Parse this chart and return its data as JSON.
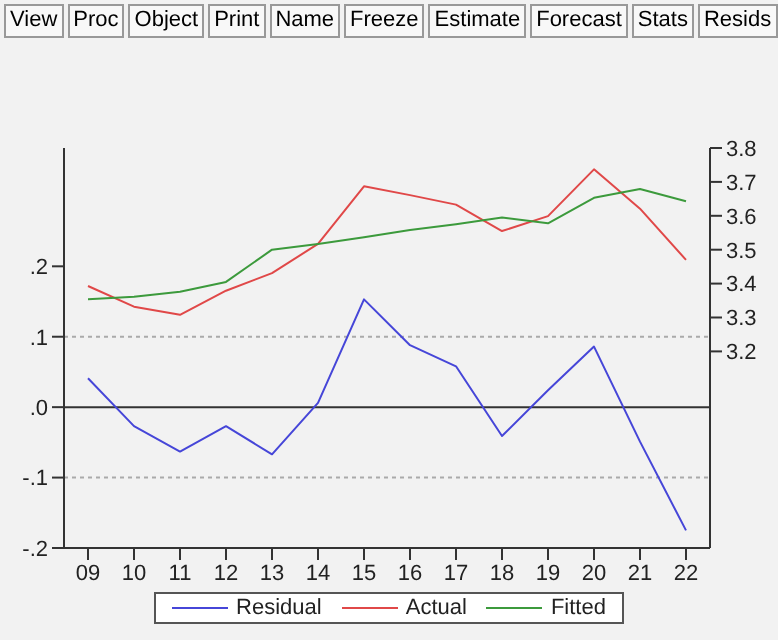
{
  "chart_data": {
    "type": "line",
    "categories": [
      "09",
      "10",
      "11",
      "12",
      "13",
      "14",
      "15",
      "16",
      "17",
      "18",
      "19",
      "20",
      "21",
      "22"
    ],
    "series": [
      {
        "name": "Residual",
        "color": "#4646d8",
        "values": [
          0.041,
          -0.027,
          -0.063,
          -0.027,
          -0.067,
          0.006,
          0.153,
          0.088,
          0.058,
          -0.041,
          0.024,
          0.086,
          -0.049,
          -0.175
        ]
      },
      {
        "name": "Actual",
        "color": "#e04848",
        "axis": "y2",
        "values": [
          3.393,
          3.332,
          3.308,
          3.379,
          3.431,
          3.517,
          3.687,
          3.661,
          3.633,
          3.555,
          3.599,
          3.737,
          3.621,
          3.47
        ]
      },
      {
        "name": "Fitted",
        "color": "#3c9a3c",
        "axis": "y2",
        "values": [
          3.354,
          3.361,
          3.376,
          3.405,
          3.5,
          3.517,
          3.537,
          3.558,
          3.575,
          3.595,
          3.578,
          3.653,
          3.679,
          3.643
        ]
      }
    ],
    "ylim": [
      -0.2,
      0.368
    ],
    "yticks": [
      {
        "value": -0.2,
        "label": "-.2"
      },
      {
        "value": -0.1,
        "label": "-.1"
      },
      {
        "value": 0,
        "label": ".0"
      },
      {
        "value": 0.1,
        "label": ".1"
      },
      {
        "value": 0.2,
        "label": ".2"
      }
    ],
    "y2lim": [
      2.62,
      3.8
    ],
    "y2ticks": [
      3.2,
      3.3,
      3.4,
      3.5,
      3.6,
      3.7,
      3.8
    ],
    "ref_lines": [
      {
        "axis": "y",
        "value": 0,
        "color": "#333333",
        "line_style": "solid"
      },
      {
        "axis": "y",
        "value": 0.1,
        "color": "#aaaaaa",
        "line_style": "dotted"
      },
      {
        "axis": "y",
        "value": -0.1,
        "color": "#aaaaaa",
        "line_style": "dotted"
      }
    ],
    "annotations": [
      "View",
      "Proc",
      "Object",
      "Print",
      "Name",
      "Freeze",
      "Estimate",
      "Forecast",
      "Stats",
      "Resids"
    ],
    "legend": "bottom",
    "marker": "none",
    "line_style": "solid",
    "grid": false
  }
}
